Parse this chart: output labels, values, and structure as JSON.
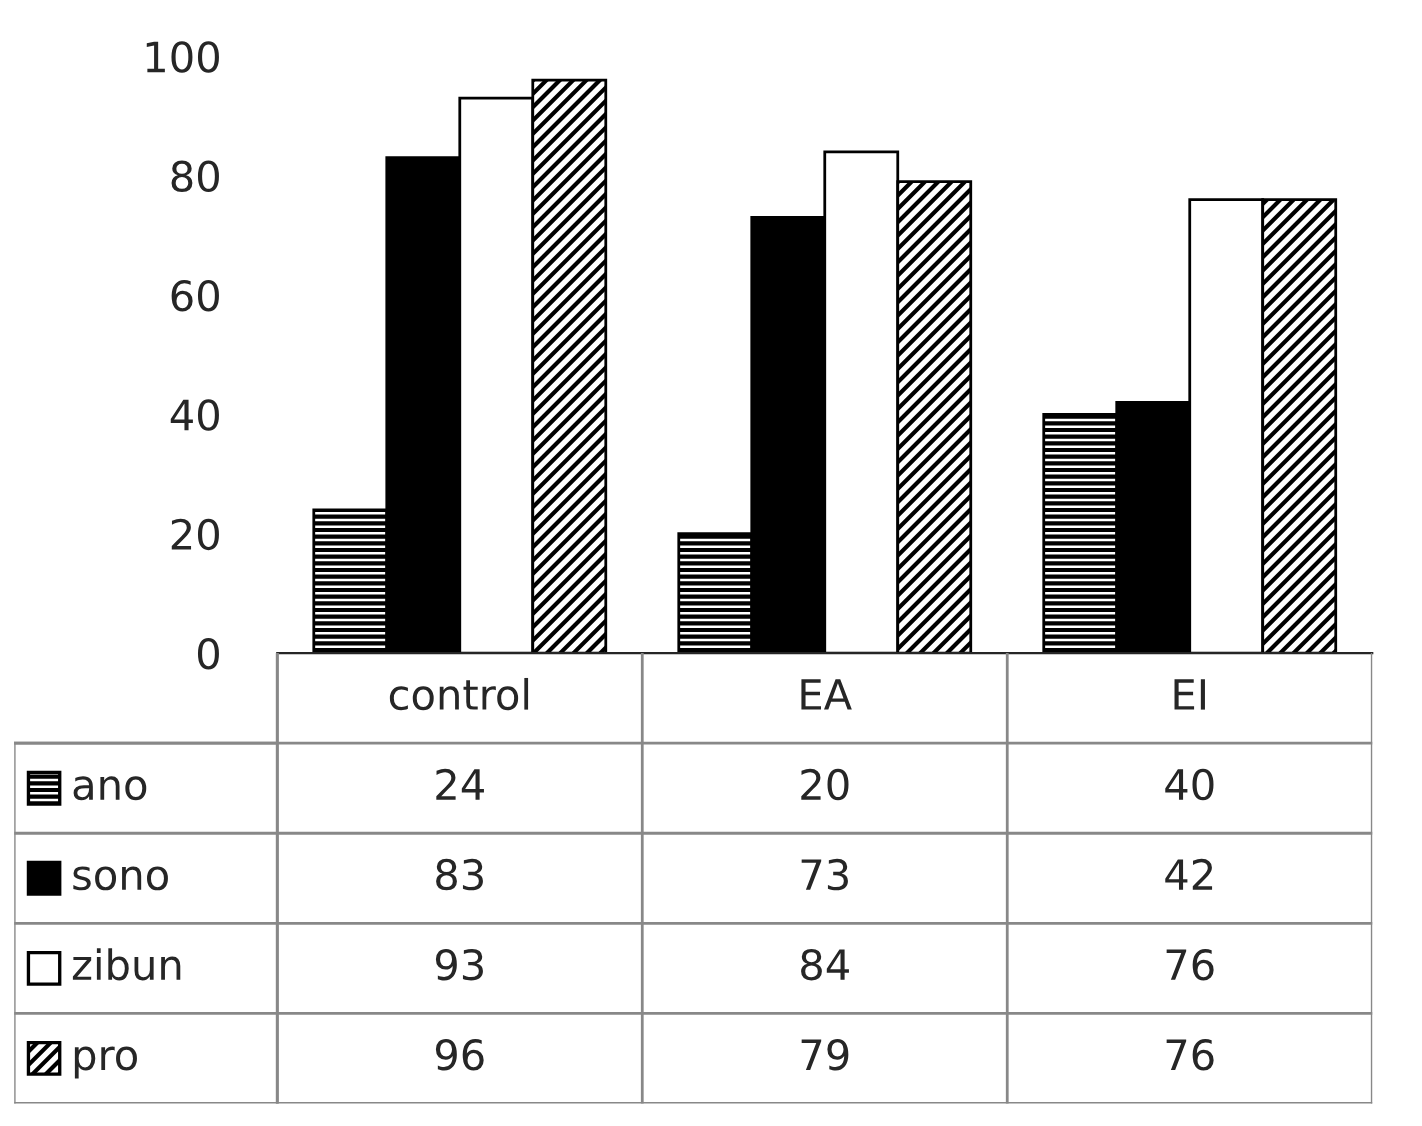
{
  "chart_data": {
    "type": "bar",
    "categories": [
      "control",
      "EA",
      "EI"
    ],
    "series": [
      {
        "name": "ano",
        "color": "#000000",
        "values": [
          24,
          20,
          40
        ]
      },
      {
        "name": "sono",
        "color": "#000000",
        "values": [
          83,
          73,
          42
        ]
      },
      {
        "name": "zibun",
        "color": "#ffffff",
        "values": [
          93,
          84,
          76
        ]
      },
      {
        "name": "pro",
        "color": "#000000",
        "values": [
          96,
          79,
          76
        ]
      }
    ],
    "ylim": [
      0,
      100
    ],
    "yticks": [
      0,
      20,
      40,
      60,
      80,
      100
    ],
    "grid": false,
    "legend": "bottom left",
    "data_labels": true
  }
}
